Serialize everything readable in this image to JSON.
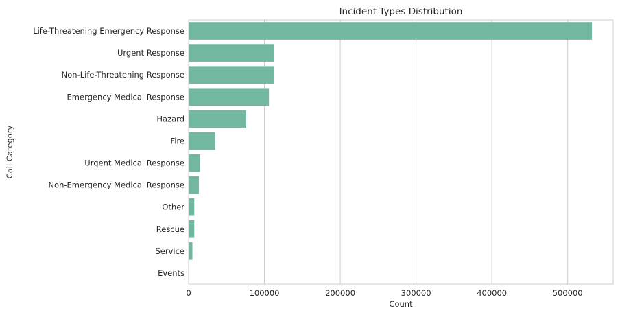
{
  "chart_data": {
    "type": "bar",
    "orientation": "horizontal",
    "title": "Incident Types Distribution",
    "xlabel": "Count",
    "ylabel": "Call Category",
    "categories": [
      "Life-Threatening Emergency Response",
      "Urgent Response",
      "Non-Life-Threatening Response",
      "Emergency Medical Response",
      "Hazard",
      "Fire",
      "Urgent Medical Response",
      "Non-Emergency Medical Response",
      "Other",
      "Rescue",
      "Service",
      "Events"
    ],
    "values": [
      532000,
      113000,
      113000,
      106000,
      76000,
      35000,
      15000,
      13500,
      7500,
      7500,
      5000,
      200
    ],
    "xlim": [
      0,
      560000
    ],
    "xticks": [
      0,
      100000,
      200000,
      300000,
      400000,
      500000
    ],
    "xtick_labels": [
      "0",
      "100000",
      "200000",
      "300000",
      "400000",
      "500000"
    ],
    "grid": "vertical",
    "bar_color": "#72b8a0",
    "grid_color": "#cccccc",
    "spine_color": "#cccccc"
  }
}
